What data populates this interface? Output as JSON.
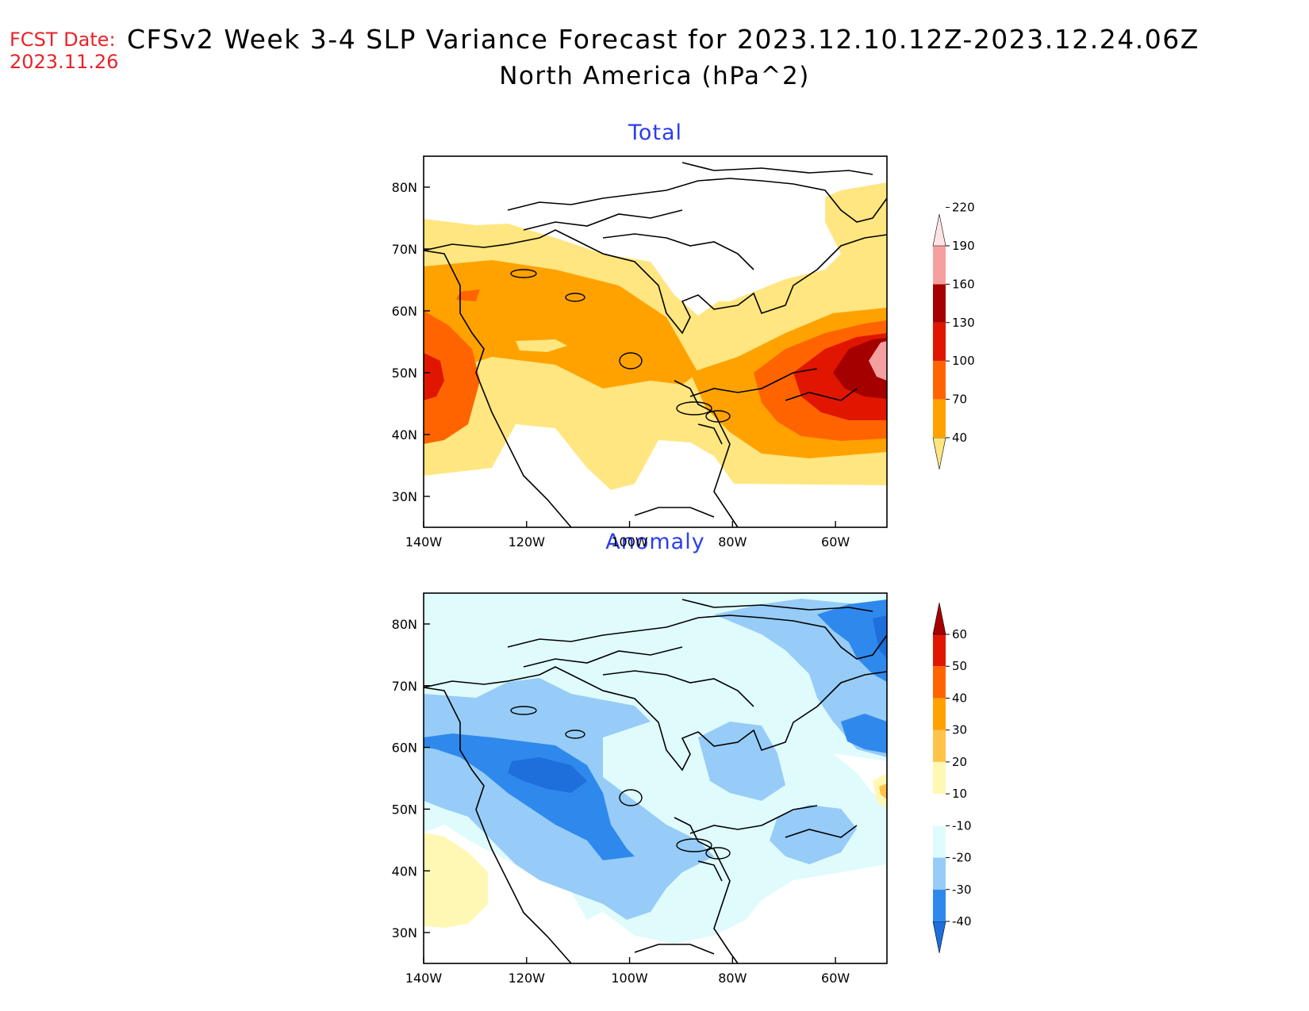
{
  "header": {
    "fcst_label": "FCST Date:",
    "fcst_date": "2023.11.26",
    "title_line1": "CFSv2 Week 3-4 SLP Variance Forecast for 2023.12.10.12Z-2023.12.24.06Z",
    "title_line2": "North America (hPa^2)"
  },
  "axes": {
    "lat_ticks": [
      "80N",
      "70N",
      "60N",
      "50N",
      "40N",
      "30N"
    ],
    "lon_ticks": [
      "140W",
      "120W",
      "100W",
      "80W",
      "60W"
    ]
  },
  "panels": [
    {
      "title": "Total",
      "colorbar": {
        "levels": [
          "40",
          "70",
          "100",
          "130",
          "160",
          "190",
          "220"
        ],
        "colors": [
          "#ffe680",
          "#ffa200",
          "#ff6400",
          "#e01600",
          "#a50000",
          "#f4a0a0",
          "#ffe4e4"
        ]
      }
    },
    {
      "title": "Anomaly",
      "colorbar": {
        "levels": [
          "-40",
          "-30",
          "-20",
          "-10",
          "10",
          "20",
          "30",
          "40",
          "50",
          "60"
        ],
        "colors": [
          "#1e6edc",
          "#2f89ec",
          "#96ccf7",
          "#e0fbfc",
          "#ffffff",
          "#fff8b4",
          "#ffc34a",
          "#ffa200",
          "#ff6400",
          "#e01600",
          "#a50000"
        ]
      }
    }
  ],
  "colors": {
    "fcst_red": "#e8232a",
    "panel_title_blue": "#2a3df0"
  }
}
